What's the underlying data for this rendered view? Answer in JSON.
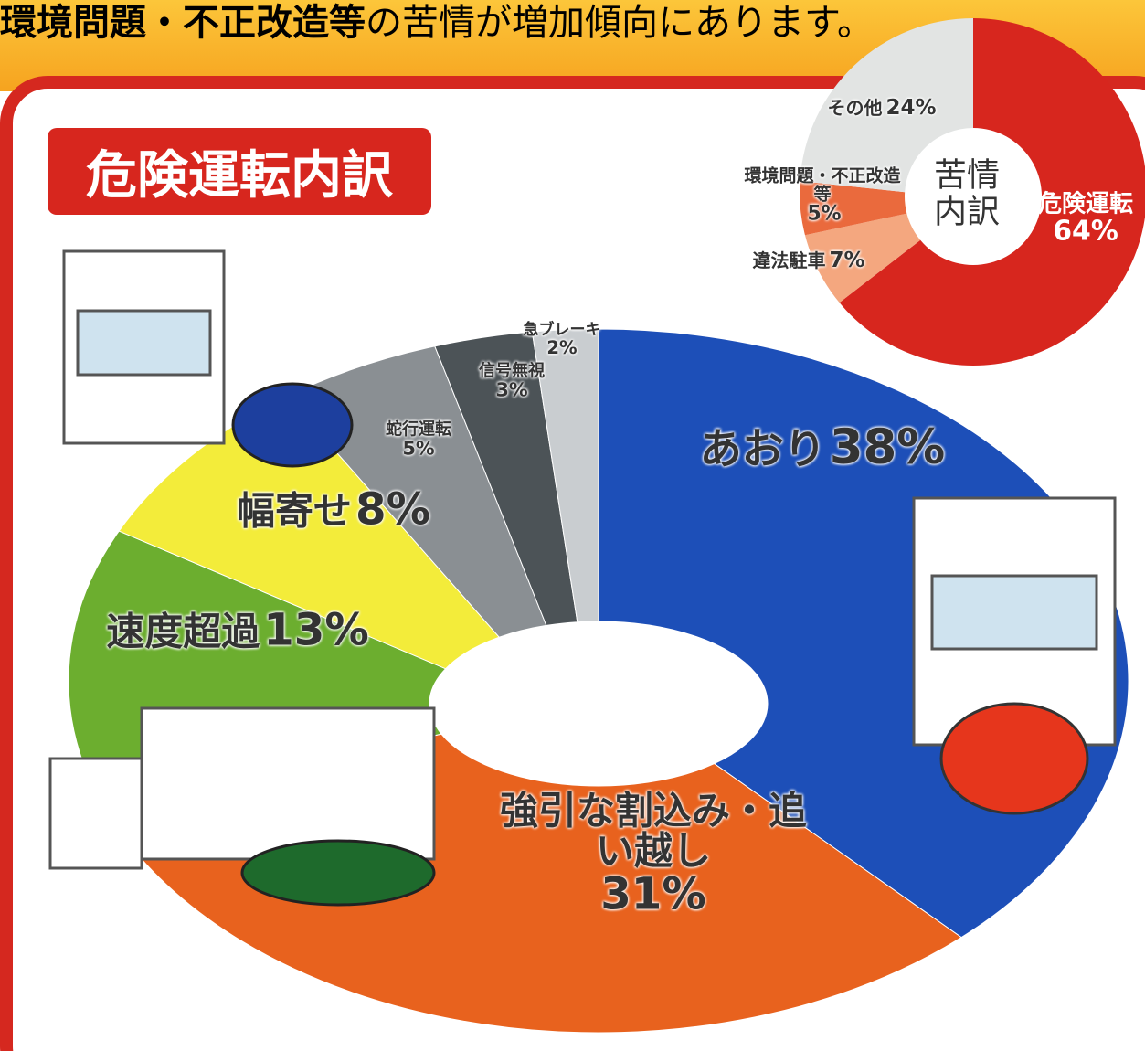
{
  "header": {
    "bold": "環境問題・不正改造等",
    "rest": "の苦情が増加傾向にあります。"
  },
  "chart_data": [
    {
      "type": "donut",
      "title": "危険運転内訳",
      "categories": [
        "あおり",
        "強引な割込み・追い越し",
        "速度超過",
        "幅寄せ",
        "蛇行運転",
        "信号無視",
        "急ブレーキ"
      ],
      "values": [
        38,
        31,
        13,
        8,
        5,
        3,
        2
      ],
      "value_labels": [
        "38%",
        "31%",
        "13%",
        "8%",
        "5%",
        "3%",
        "2%"
      ],
      "colors": [
        "#1d4fb8",
        "#e8621e",
        "#6cae2f",
        "#f3ec3a",
        "#8a8f93",
        "#4c5357",
        "#c9cdd0"
      ]
    },
    {
      "type": "donut",
      "title": "苦情内訳",
      "categories": [
        "危険運転",
        "違法駐車",
        "環境問題・不正改造等",
        "その他"
      ],
      "values": [
        64,
        7,
        5,
        24
      ],
      "value_labels": [
        "64%",
        "7%",
        "5%",
        "24%"
      ],
      "colors": [
        "#d7261e",
        "#f4a77f",
        "#ea6a3d",
        "#e2e4e3"
      ]
    }
  ]
}
